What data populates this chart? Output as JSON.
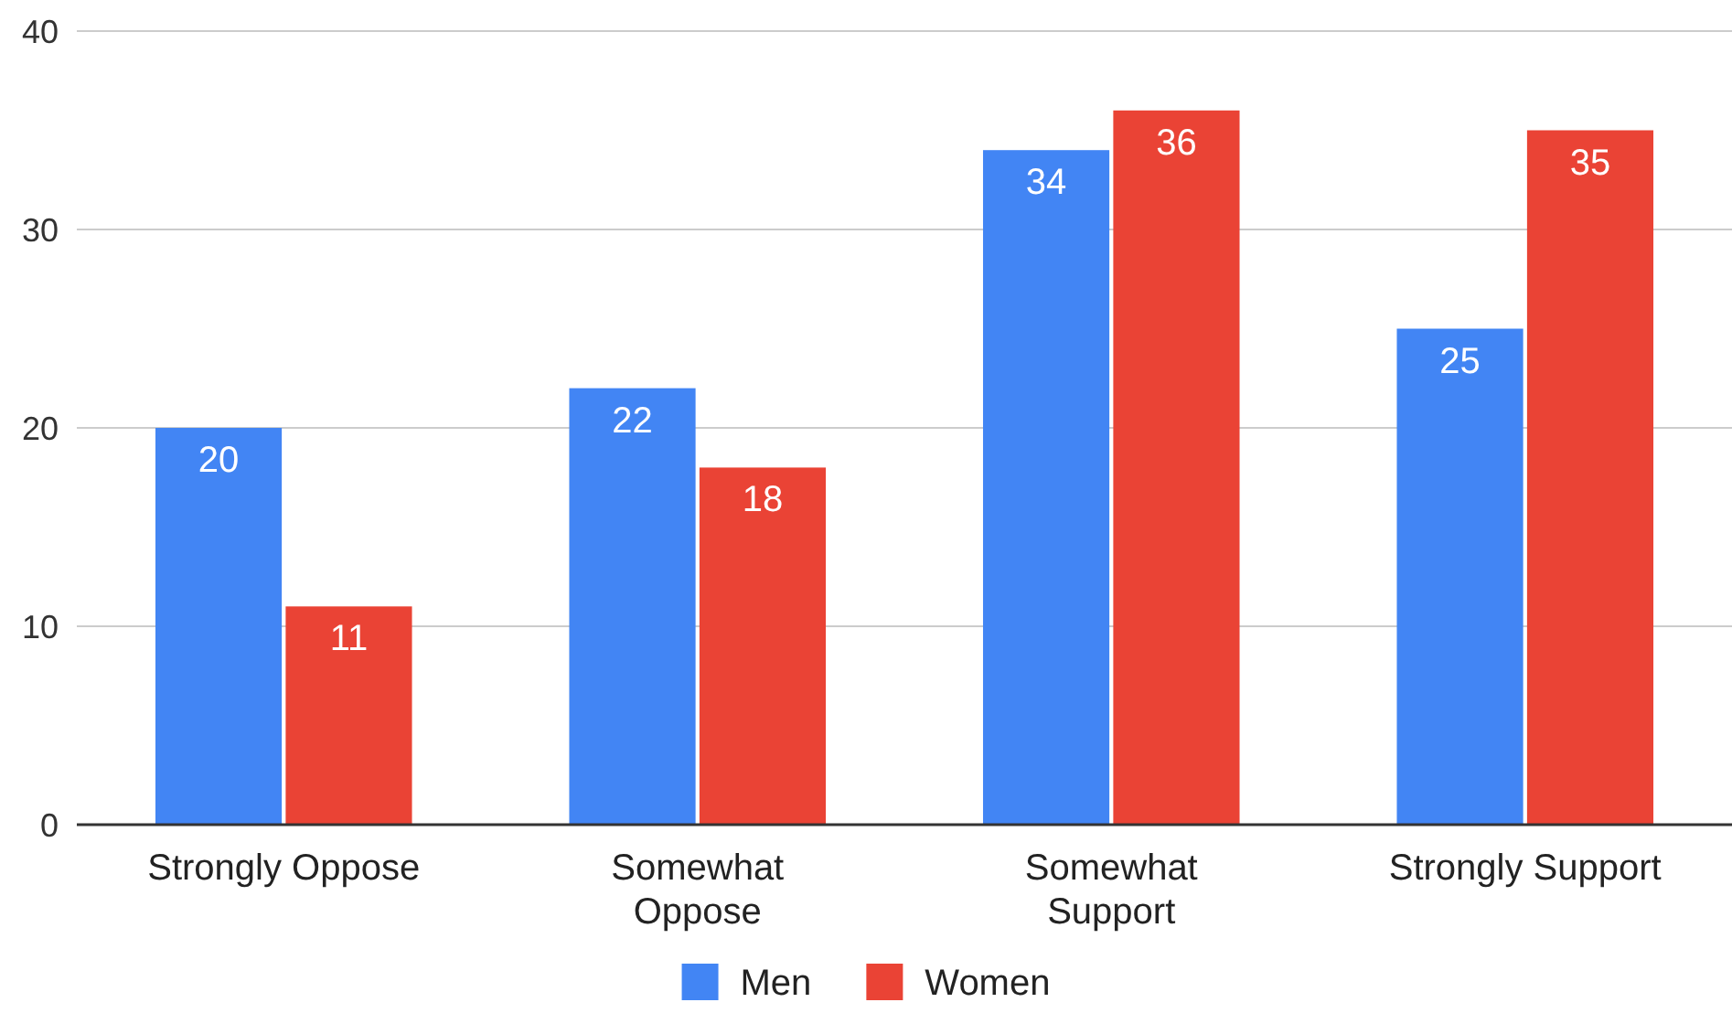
{
  "chart_data": {
    "type": "bar",
    "categories": [
      "Strongly Oppose",
      "Somewhat Oppose",
      "Somewhat Support",
      "Strongly Support"
    ],
    "series": [
      {
        "name": "Men",
        "color": "#4285f4",
        "values": [
          20,
          22,
          34,
          25
        ]
      },
      {
        "name": "Women",
        "color": "#ea4335",
        "values": [
          11,
          18,
          36,
          35
        ]
      }
    ],
    "ylim": [
      0,
      40
    ],
    "yticks": [
      0,
      10,
      20,
      30,
      40
    ],
    "grid": "y",
    "legend": "bottom",
    "data_labels": true
  }
}
